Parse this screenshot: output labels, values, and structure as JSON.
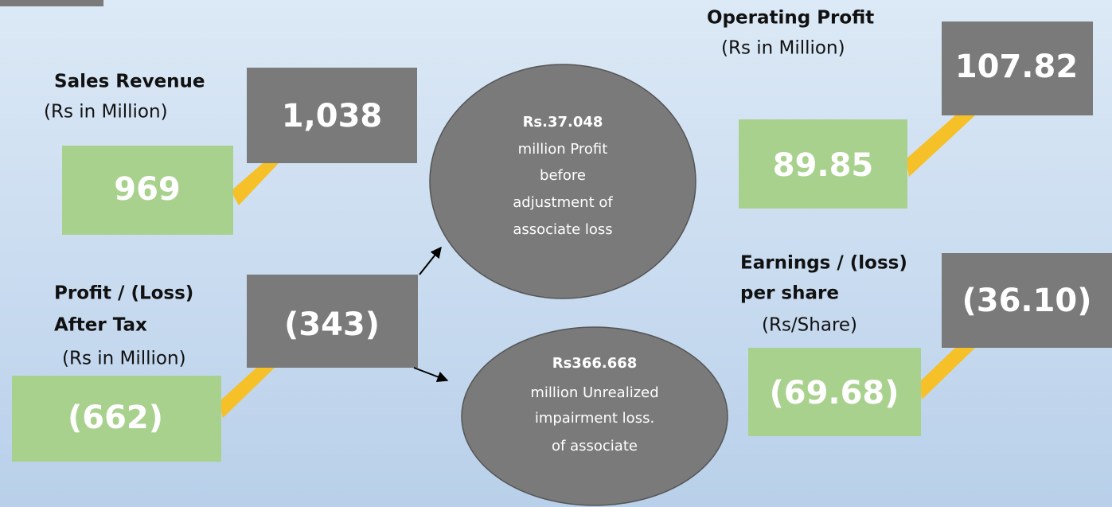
{
  "panels": [
    {
      "label": [
        "Sales Revenue"
      ],
      "unit": "(Rs in Million)",
      "previous": "969",
      "current": "1,038"
    },
    {
      "label": [
        "Profit / (Loss)",
        "After Tax"
      ],
      "unit": "(Rs in Million)",
      "previous": "(662)",
      "current": "(343)"
    },
    {
      "label": [
        "Operating Profit"
      ],
      "unit": "(Rs in Million)",
      "previous": "89.85",
      "current": "107.82"
    },
    {
      "label": [
        "Earnings / (loss)",
        "per share"
      ],
      "unit": "(Rs/Share)",
      "previous": "(69.68)",
      "current": "(36.10)"
    }
  ],
  "notes": [
    {
      "title": "Rs.37.048",
      "lines": [
        "million Profit",
        "before",
        "adjustment of",
        "associate  loss"
      ]
    },
    {
      "title": "Rs366.668",
      "lines": [
        "million Unrealized",
        "impairment loss.",
        "of associate"
      ]
    }
  ]
}
